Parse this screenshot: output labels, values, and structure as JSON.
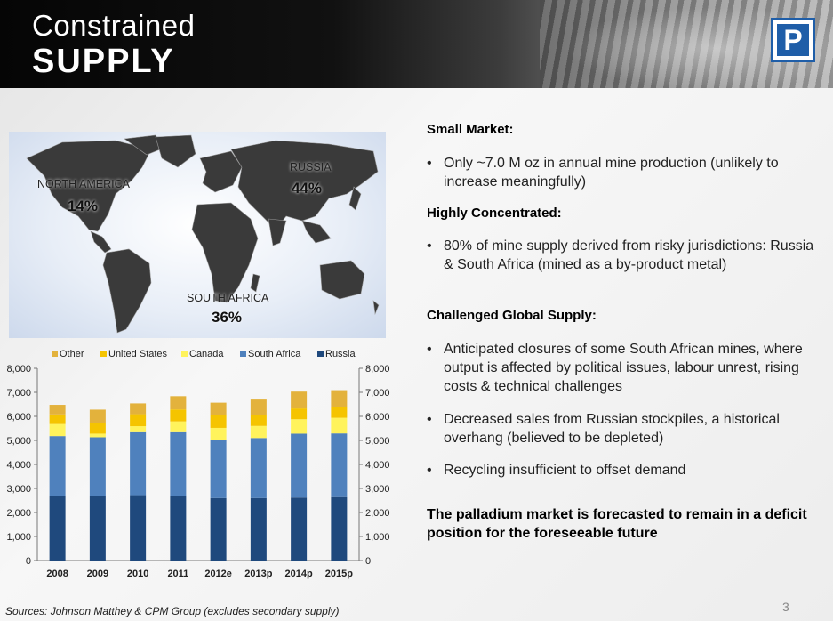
{
  "header": {
    "title_line1": "Constrained",
    "title_line2": "SUPPLY",
    "logo_letter": "P"
  },
  "map": {
    "north_america_label": "NORTH AMERICA",
    "north_america_pct": "14%",
    "russia_label": "RUSSIA",
    "russia_pct": "44%",
    "south_africa_label": "SOUTH AFRICA",
    "south_africa_pct": "36%"
  },
  "chart_data": {
    "type": "bar",
    "stacked": true,
    "categories": [
      "2008",
      "2009",
      "2010",
      "2011",
      "2012e",
      "2013p",
      "2014p",
      "2015p"
    ],
    "series": [
      {
        "name": "Russia",
        "color": "#1f497d",
        "values": [
          2700,
          2680,
          2720,
          2700,
          2600,
          2600,
          2620,
          2640
        ]
      },
      {
        "name": "South Africa",
        "color": "#4f81bd",
        "values": [
          2480,
          2450,
          2620,
          2640,
          2420,
          2500,
          2660,
          2650
        ]
      },
      {
        "name": "Canada",
        "color": "#fff35c",
        "values": [
          500,
          150,
          250,
          450,
          500,
          500,
          600,
          650
        ]
      },
      {
        "name": "United States",
        "color": "#f5c400",
        "values": [
          400,
          450,
          500,
          500,
          550,
          450,
          450,
          450
        ]
      },
      {
        "name": "Other",
        "color": "#e3b23c",
        "values": [
          400,
          550,
          450,
          550,
          500,
          650,
          700,
          700
        ]
      }
    ],
    "legend_order": [
      "Other",
      "United States",
      "Canada",
      "South Africa",
      "Russia"
    ],
    "legend_position": "top",
    "yticks": [
      "0",
      "1,000",
      "2,000",
      "3,000",
      "4,000",
      "5,000",
      "6,000",
      "7,000",
      "8,000"
    ],
    "ylim": [
      0,
      8000
    ],
    "grid": false,
    "dual_axis": true
  },
  "right": {
    "heading1": "Small Market:",
    "bullet1": "Only ~7.0 M oz in annual mine production (unlikely to increase meaningfully)",
    "heading2": "Highly Concentrated:",
    "bullet2": "80% of mine supply derived from risky jurisdictions: Russia & South Africa (mined as a by-product metal)",
    "heading3": "Challenged Global Supply:",
    "bullet3": "Anticipated closures of some South African mines, where output is affected by political issues, labour unrest, rising costs & technical challenges",
    "bullet4": "Decreased sales from Russian stockpiles, a historical overhang  (believed to be depleted)",
    "bullet5": "Recycling insufficient to offset demand",
    "bullet_char": "•",
    "conclusion": "The palladium market is forecasted to remain in a deficit position for the foreseeable future"
  },
  "footer": {
    "source": "Sources: Johnson Matthey & CPM Group (excludes secondary supply)",
    "page_number": "3"
  }
}
